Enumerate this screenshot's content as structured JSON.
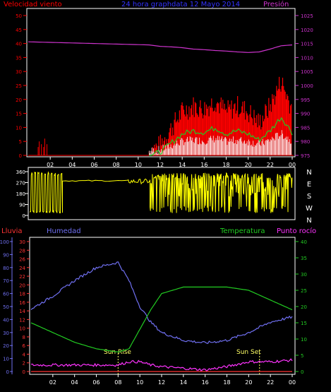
{
  "colors": {
    "background": "#000000",
    "frame": "#ffffff",
    "wind_title": "#ff0000",
    "header_title": "#3333ff",
    "pressure": "#cc33cc",
    "wind_gust": "#ff0000",
    "wind_avg": "#22cc22",
    "wind_min": "#ffffff",
    "wind_dir": "#ffff00",
    "rain": "#ff3333",
    "humidity": "#6f6ff0",
    "temperature": "#22cc22",
    "dewpoint": "#ff33ff",
    "sun_label": "#ffff66",
    "hour_label": "#ffffff"
  },
  "header": {
    "wind_title": "Velocidad viento",
    "graph_title": "24 hora graphdata  12 Mayo 2014",
    "pressure_title": "Presión"
  },
  "bottom_header": {
    "rain_title": "Lluvia",
    "humidity_title": "Humedad",
    "temperature_title": "Temperatura",
    "dewpoint_title": "Punto rocío"
  },
  "hour_ticks": [
    "02",
    "04",
    "06",
    "08",
    "10",
    "12",
    "14",
    "16",
    "18",
    "20",
    "22",
    "00"
  ],
  "sun_events": {
    "sunrise_label": "Sun Rise",
    "sunset_label": "Sun Set",
    "sunrise_hour": 8,
    "sunset_hour": 21
  },
  "chart_data": [
    {
      "type": "line",
      "name": "wind-pressure",
      "x_hours": [
        0,
        11,
        12,
        13,
        14,
        15,
        16,
        17,
        18,
        19,
        20,
        21,
        22,
        23,
        24
      ],
      "series": [
        {
          "name": "Velocidad viento",
          "values": [
            0,
            0,
            2,
            8,
            14,
            16,
            15,
            18,
            14,
            16,
            14,
            10,
            16,
            25,
            15
          ]
        },
        {
          "name": "Presión",
          "values": [
            1015.6,
            1014.5,
            1014.0,
            1013.8,
            1013.5,
            1013.0,
            1012.8,
            1012.5,
            1012.3,
            1012.0,
            1011.8,
            1012.0,
            1013.0,
            1014.2,
            1014.5
          ]
        }
      ],
      "wind_ylim": [
        0,
        50
      ],
      "wind_ticks": [
        "0",
        "5",
        "10",
        "15",
        "20",
        "25",
        "30",
        "35",
        "40",
        "45",
        "50"
      ],
      "pressure_ylim": [
        975,
        1025
      ],
      "pressure_ticks": [
        "975",
        "980",
        "985",
        "990",
        "995",
        "1000",
        "1005",
        "1010",
        "1015",
        "1020",
        "1025"
      ]
    },
    {
      "type": "line",
      "name": "wind-direction",
      "direction_ticks_left": [
        "0",
        "90",
        "180",
        "270",
        "360"
      ],
      "direction_ticks_right": [
        "N",
        "W",
        "S",
        "E",
        "N"
      ],
      "ylim": [
        0,
        360
      ]
    },
    {
      "type": "line",
      "name": "temp-humidity",
      "x_hours": [
        0,
        2,
        4,
        6,
        8,
        9,
        10,
        11,
        12,
        14,
        16,
        18,
        20,
        22,
        24
      ],
      "series": [
        {
          "name": "Humedad",
          "values": [
            48,
            58,
            70,
            80,
            84,
            70,
            50,
            38,
            30,
            24,
            22,
            24,
            30,
            38,
            42
          ]
        },
        {
          "name": "Temperatura",
          "values": [
            15,
            12,
            9,
            7,
            6,
            7,
            13,
            19,
            24,
            26,
            26,
            26,
            25,
            22,
            19
          ]
        },
        {
          "name": "Punto rocío",
          "values": [
            2,
            2,
            2,
            2,
            2,
            3,
            3,
            2,
            1.5,
            1,
            0.5,
            1.5,
            3,
            3,
            3.5
          ]
        },
        {
          "name": "Lluvia",
          "values": [
            0,
            0,
            0,
            0,
            0,
            0,
            0,
            0,
            0,
            0,
            0,
            0,
            0,
            0,
            0
          ]
        }
      ],
      "humidity_ylim": [
        0,
        100
      ],
      "humidity_ticks": [
        "0",
        "10",
        "20",
        "30",
        "40",
        "50",
        "60",
        "70",
        "80",
        "90",
        "100"
      ],
      "rain_ylim": [
        0,
        30
      ],
      "rain_ticks": [
        "0",
        "2",
        "4",
        "6",
        "8",
        "10",
        "12",
        "14",
        "16",
        "18",
        "20",
        "22",
        "24",
        "26",
        "28",
        "30"
      ],
      "temp_ylim": [
        0,
        40
      ],
      "temp_ticks": [
        "0",
        "5",
        "10",
        "15",
        "20",
        "25",
        "30",
        "35",
        "40"
      ]
    }
  ]
}
